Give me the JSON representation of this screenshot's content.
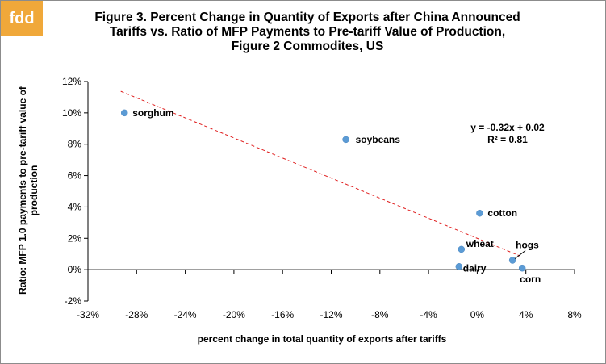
{
  "logo": {
    "text": "fdd",
    "color": "#f0a83a"
  },
  "title_lines": [
    "Figure 3. Percent Change in Quantity of Exports after China Announced",
    "Tariffs vs. Ratio of MFP Payments to Pre-tariff Value of Production,",
    "Figure 2 Commodites, US"
  ],
  "chart_data": {
    "type": "scatter",
    "title": "Figure 3. Percent Change in Quantity of Exports after China Announced Tariffs vs. Ratio of MFP Payments to Pre-tariff Value of Production, Figure 2 Commodites, US",
    "xlabel": "percent change in total quantity of exports after tariffs",
    "ylabel": "Ratio: MFP 1.0 payments to pre-tariff  value of production",
    "xlim": [
      -0.32,
      0.08
    ],
    "ylim": [
      -0.02,
      0.12
    ],
    "x_ticks": [
      -0.32,
      -0.28,
      -0.24,
      -0.2,
      -0.16,
      -0.12,
      -0.08,
      -0.04,
      0.0,
      0.04,
      0.08
    ],
    "x_tick_labels": [
      "-32%",
      "-28%",
      "-24%",
      "-20%",
      "-16%",
      "-12%",
      "-8%",
      "-4%",
      "0%",
      "4%",
      "8%"
    ],
    "y_ticks": [
      -0.02,
      0.0,
      0.02,
      0.04,
      0.06,
      0.08,
      0.1,
      0.12
    ],
    "y_tick_labels": [
      "-2%",
      "0%",
      "2%",
      "4%",
      "6%",
      "8%",
      "10%",
      "12%"
    ],
    "grid": false,
    "marker_color": "#5b9bd5",
    "trendline_color": "#e02020",
    "points": [
      {
        "label": "sorghum",
        "x": -0.29,
        "y": 0.1
      },
      {
        "label": "soybeans",
        "x": -0.108,
        "y": 0.083
      },
      {
        "label": "cotton",
        "x": 0.002,
        "y": 0.036
      },
      {
        "label": "wheat",
        "x": -0.013,
        "y": 0.013
      },
      {
        "label": "dairy",
        "x": -0.015,
        "y": 0.002
      },
      {
        "label": "hogs",
        "x": 0.029,
        "y": 0.006
      },
      {
        "label": "corn",
        "x": 0.037,
        "y": 0.001
      }
    ],
    "trendline": {
      "slope": -0.32,
      "intercept": 0.02,
      "x_range": [
        -0.293,
        0.035
      ],
      "equation": "y = -0.32x + 0.02",
      "r_squared": "R² = 0.81"
    }
  }
}
